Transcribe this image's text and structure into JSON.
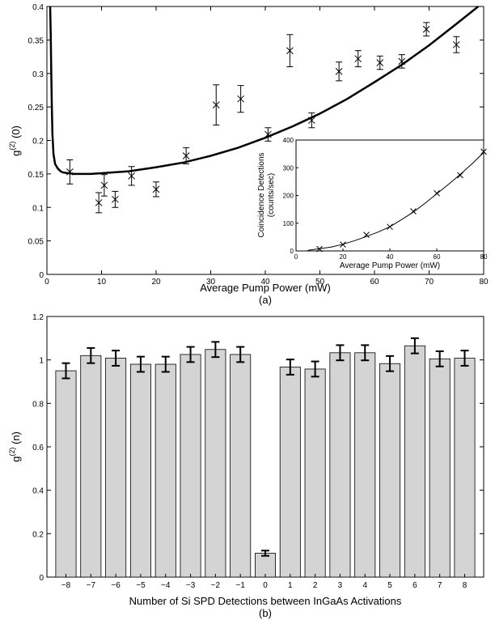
{
  "chart_data": [
    {
      "id": "a",
      "type": "scatter",
      "title": "",
      "caption": "(a)",
      "xlabel": "Average Pump Power (mW)",
      "ylabel_main": "g",
      "ylabel_sup": "(2)",
      "ylabel_tail": " (0)",
      "xlim": [
        0,
        80
      ],
      "ylim": [
        0,
        0.4
      ],
      "xticks": [
        0,
        10,
        20,
        30,
        40,
        50,
        60,
        70,
        80
      ],
      "yticks": [
        0,
        0.05,
        0.1,
        0.15,
        0.2,
        0.25,
        0.3,
        0.35,
        0.4
      ],
      "grid": false,
      "color": "#000000",
      "series": [
        {
          "kind": "points-with-error",
          "x": [
            4.2,
            9.5,
            10.5,
            12.5,
            15.5,
            20.0,
            25.5,
            31.0,
            35.5,
            40.5,
            44.5,
            48.5,
            53.5,
            57.0,
            61.0,
            65.0,
            69.5,
            75.0
          ],
          "y": [
            0.153,
            0.107,
            0.133,
            0.112,
            0.147,
            0.127,
            0.177,
            0.253,
            0.262,
            0.209,
            0.334,
            0.23,
            0.303,
            0.322,
            0.316,
            0.318,
            0.366,
            0.343
          ],
          "err": [
            0.018,
            0.015,
            0.016,
            0.012,
            0.014,
            0.011,
            0.012,
            0.03,
            0.02,
            0.01,
            0.024,
            0.011,
            0.014,
            0.012,
            0.01,
            0.01,
            0.01,
            0.012
          ]
        },
        {
          "kind": "fit-curve",
          "x": [
            0.6,
            0.7,
            0.8,
            0.9,
            1.0,
            1.2,
            1.5,
            2.0,
            2.5,
            3,
            4,
            5,
            6,
            8,
            10,
            15,
            20,
            25,
            30,
            35,
            40,
            45,
            50,
            55,
            60,
            65,
            70,
            75,
            79
          ],
          "y": [
            0.4,
            0.36,
            0.3,
            0.25,
            0.21,
            0.18,
            0.165,
            0.158,
            0.154,
            0.152,
            0.151,
            0.15,
            0.15,
            0.15,
            0.151,
            0.154,
            0.16,
            0.167,
            0.177,
            0.189,
            0.204,
            0.221,
            0.24,
            0.262,
            0.287,
            0.313,
            0.342,
            0.374,
            0.4
          ]
        }
      ],
      "inset": {
        "type": "line",
        "xlabel": "Average Pump Power (mW)",
        "ylabel_line1": "Coincidence Detections",
        "ylabel_line2": "(counts/sec)",
        "xlim": [
          0,
          80
        ],
        "ylim": [
          0,
          400
        ],
        "xticks": [
          0,
          20,
          40,
          60,
          80
        ],
        "yticks": [
          0,
          100,
          200,
          300,
          400
        ],
        "points_x": [
          10,
          20,
          30,
          40,
          50,
          60,
          70,
          80
        ],
        "points_y": [
          7,
          23,
          58,
          87,
          143,
          208,
          273,
          358
        ],
        "curve_x": [
          5,
          10,
          15,
          20,
          25,
          30,
          35,
          40,
          45,
          50,
          55,
          60,
          65,
          70,
          75,
          80
        ],
        "curve_y": [
          2,
          8,
          14,
          24,
          37,
          52,
          68,
          87,
          113,
          140,
          172,
          206,
          240,
          276,
          314,
          355
        ]
      }
    },
    {
      "id": "b",
      "type": "bar",
      "title": "",
      "caption": "(b)",
      "xlabel": "Number of Si SPD Detections between InGaAs Activations",
      "ylabel_main": "g",
      "ylabel_sup": "(2)",
      "ylabel_tail": " (n)",
      "ylim": [
        0,
        1.2
      ],
      "yticks": [
        0,
        0.2,
        0.4,
        0.6,
        0.8,
        1,
        1.2
      ],
      "categories": [
        "−8",
        "−7",
        "−6",
        "−5",
        "−4",
        "−3",
        "−2",
        "−1",
        "0",
        "1",
        "2",
        "3",
        "4",
        "5",
        "6",
        "7",
        "8"
      ],
      "values": [
        0.95,
        1.02,
        1.008,
        0.98,
        0.98,
        1.025,
        1.048,
        1.025,
        0.11,
        0.967,
        0.958,
        1.033,
        1.033,
        0.983,
        1.065,
        1.005,
        1.008
      ],
      "errors": [
        0.035,
        0.035,
        0.035,
        0.035,
        0.035,
        0.035,
        0.035,
        0.035,
        0.012,
        0.035,
        0.035,
        0.035,
        0.035,
        0.035,
        0.035,
        0.035,
        0.035
      ],
      "bar_color": "#d4d4d4",
      "grid": false
    }
  ]
}
